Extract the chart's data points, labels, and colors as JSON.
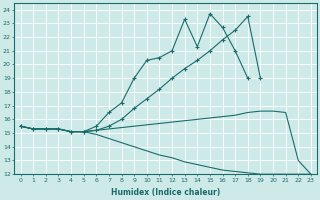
{
  "xlabel": "Humidex (Indice chaleur)",
  "xlim": [
    -0.5,
    23.5
  ],
  "ylim": [
    12,
    24.5
  ],
  "yticks": [
    12,
    13,
    14,
    15,
    16,
    17,
    18,
    19,
    20,
    21,
    22,
    23,
    24
  ],
  "xticks": [
    0,
    1,
    2,
    3,
    4,
    5,
    6,
    7,
    8,
    9,
    10,
    11,
    12,
    13,
    14,
    15,
    16,
    17,
    18,
    19,
    20,
    21,
    22,
    23
  ],
  "bg_color": "#ceeae8",
  "line_color": "#1a6b6b",
  "grid_color": "#b8d8d6",
  "line1_x": [
    0,
    1,
    2,
    3,
    4,
    5,
    6,
    7,
    8,
    9,
    10,
    11,
    12,
    13,
    14,
    15,
    16,
    17,
    18
  ],
  "line1_y": [
    15.5,
    15.3,
    15.3,
    15.3,
    15.1,
    15.1,
    15.5,
    16.5,
    17.2,
    19.0,
    20.3,
    20.5,
    21.0,
    23.3,
    21.3,
    23.7,
    22.7,
    21.0,
    19.0
  ],
  "line2_x": [
    0,
    1,
    2,
    3,
    4,
    5,
    6,
    7,
    8,
    9,
    10,
    11,
    12,
    13,
    14,
    15,
    16,
    17,
    18,
    19
  ],
  "line2_y": [
    15.5,
    15.3,
    15.3,
    15.3,
    15.1,
    15.1,
    15.2,
    15.5,
    16.0,
    16.8,
    17.5,
    18.2,
    19.0,
    19.7,
    20.3,
    21.0,
    21.8,
    22.5,
    23.5,
    19.0
  ],
  "line3_x": [
    0,
    1,
    2,
    3,
    4,
    5,
    6,
    7,
    8,
    9,
    10,
    11,
    12,
    13,
    14,
    15,
    16,
    17,
    18,
    19,
    20,
    21,
    22,
    23
  ],
  "line3_y": [
    15.5,
    15.3,
    15.3,
    15.3,
    15.1,
    15.1,
    15.2,
    15.3,
    15.4,
    15.5,
    15.6,
    15.7,
    15.8,
    15.9,
    16.0,
    16.1,
    16.2,
    16.3,
    16.5,
    16.6,
    16.6,
    16.5,
    13.0,
    12.0
  ],
  "line4_x": [
    0,
    1,
    2,
    3,
    4,
    5,
    6,
    7,
    8,
    9,
    10,
    11,
    12,
    13,
    14,
    15,
    16,
    17,
    18,
    19,
    20,
    21,
    22,
    23
  ],
  "line4_y": [
    15.5,
    15.3,
    15.3,
    15.3,
    15.1,
    15.1,
    14.9,
    14.6,
    14.3,
    14.0,
    13.7,
    13.4,
    13.2,
    12.9,
    12.7,
    12.5,
    12.3,
    12.2,
    12.1,
    12.0,
    12.0,
    12.0,
    12.0,
    12.0
  ]
}
